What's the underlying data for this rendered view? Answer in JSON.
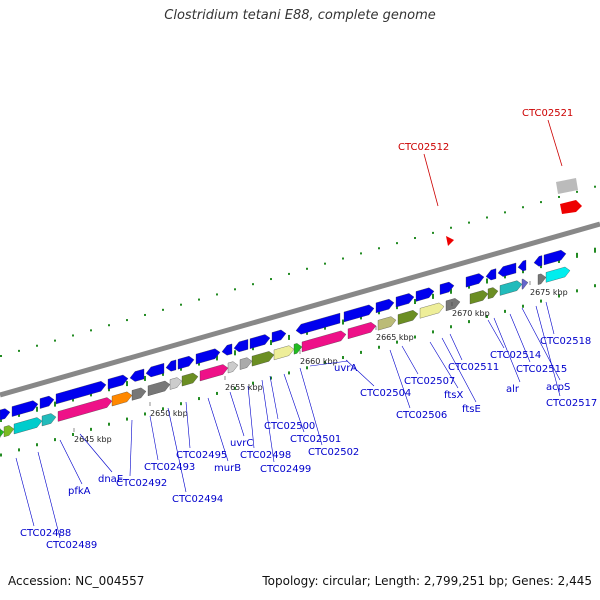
{
  "title": "Clostridium tetani E88, complete genome",
  "footer": {
    "accession": "Accession: NC_004557",
    "summary": "Topology: circular; Length: 2,799,251 bp; Genes: 2,445"
  },
  "colors": {
    "gene_label": "#0000cc",
    "highlight_label": "#cc0000",
    "backbone": "#888888",
    "dots": "#228b22"
  },
  "ticks": [
    "2645 kbp",
    "2650 kbp",
    "2655 kbp",
    "2660 kbp",
    "2665 kbp",
    "2670 kbp",
    "2675 kbp"
  ],
  "gene_labels": [
    "CTC02488",
    "CTC02489",
    "pfkA",
    "dnaE",
    "CTC02492",
    "CTC02493",
    "CTC02494",
    "CTC02495",
    "murB",
    "uvrC",
    "CTC02498",
    "CTC02499",
    "CTC02500",
    "CTC02501",
    "CTC02502",
    "uvrA",
    "CTC02504",
    "CTC02506",
    "CTC02507",
    "ftsX",
    "ftsE",
    "CTC02511",
    "alr",
    "CTC02514",
    "CTC02515",
    "acpS",
    "CTC02517",
    "CTC02518"
  ],
  "highlight_labels": [
    "CTC02512",
    "CTC02521"
  ]
}
